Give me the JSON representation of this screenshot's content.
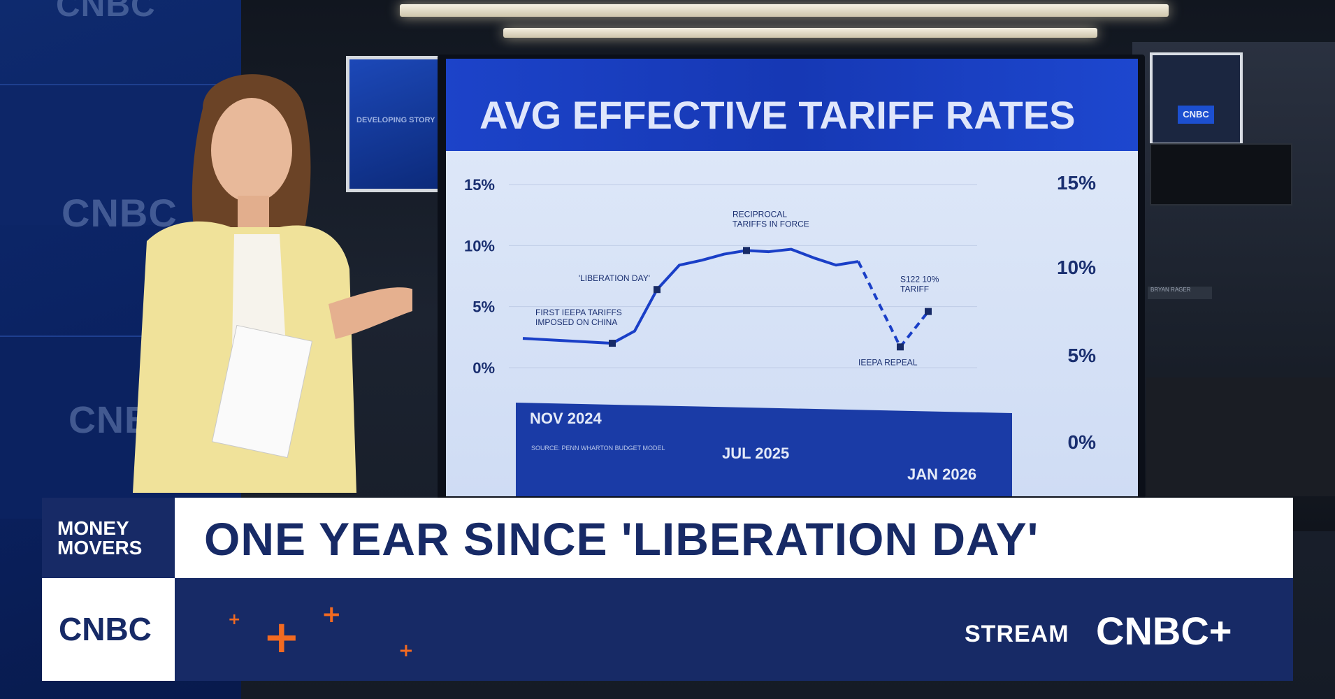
{
  "studio": {
    "wall_logos": [
      "CNBC",
      "CNBC",
      "CNBC"
    ],
    "small_monitor_text": "DEVELOPING STORY",
    "right_monitor_logo": "CNBC",
    "desk_nameplate": "BRYAN RAGER"
  },
  "screen": {
    "title": "AVG EFFECTIVE TARIFF RATES",
    "source": "SOURCE: PENN WHARTON BUDGET MODEL"
  },
  "chart_data": {
    "type": "line",
    "title": "AVG EFFECTIVE TARIFF RATES",
    "x_tick_labels": [
      "NOV 2024",
      "JUL 2025",
      "JAN 2026"
    ],
    "y_tick_labels_left": [
      "15%",
      "10%",
      "5%",
      "0%"
    ],
    "y_tick_labels_right": [
      "15%",
      "10%",
      "5%",
      "0%"
    ],
    "ylim": [
      0,
      15
    ],
    "grid": true,
    "series": [
      {
        "line_style": "solid",
        "color": "#1a3fc7",
        "values": [
          2.4,
          2.3,
          2.2,
          2.1,
          2.0,
          3.0,
          6.4,
          8.4,
          8.8,
          9.3,
          9.6,
          9.5,
          9.7,
          9.0,
          8.4,
          8.7
        ]
      },
      {
        "line_style": "dashed",
        "color": "#1a3fc7",
        "values": [
          8.7,
          1.7,
          4.6
        ]
      }
    ],
    "annotations": [
      {
        "text": "FIRST IEEPA TARIFFS IMPOSED ON CHINA",
        "value": 2.0
      },
      {
        "text": "'LIBERATION DAY'",
        "value": 6.4
      },
      {
        "text": "RECIPROCAL TARIFFS IN FORCE",
        "value": 9.6
      },
      {
        "text": "IEEPA REPEAL",
        "value": 1.7
      },
      {
        "text": "S122 10% TARIFF",
        "value": 4.6
      }
    ]
  },
  "lower_third": {
    "show_name": [
      "MONEY",
      "MOVERS"
    ],
    "headline": "ONE YEAR SINCE 'LIBERATION DAY'",
    "network_logo": "CNBC",
    "stream_label": "STREAM",
    "stream_brand": "CNBC+",
    "accent_color": "#f26a21",
    "navy_color": "#172a66"
  }
}
